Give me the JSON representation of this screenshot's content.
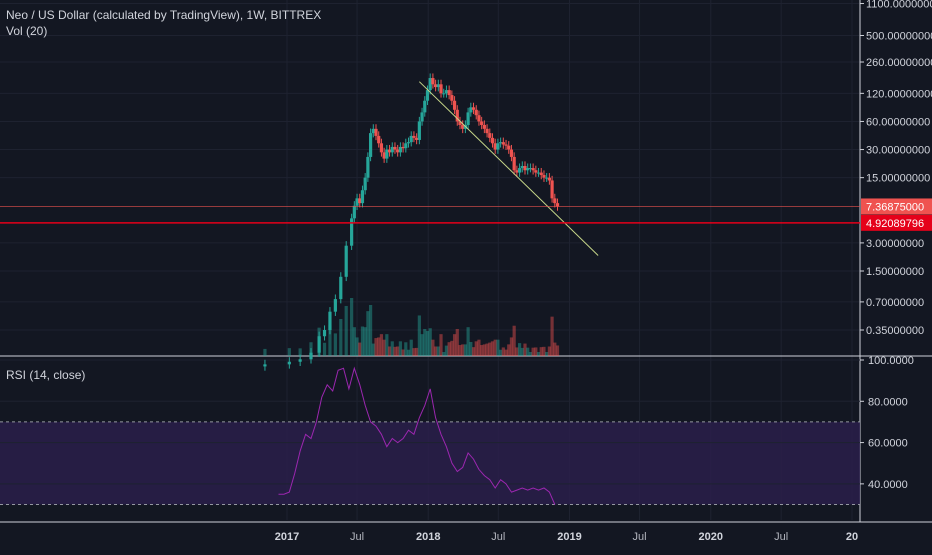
{
  "header": {
    "symbol_title": "Neo / US Dollar (calculated by TradingView), 1W, BITTREX",
    "volume_label": "Vol (20)",
    "rsi_label": "RSI (14, close)"
  },
  "colors": {
    "background": "#131722",
    "up": "#26a69a",
    "down": "#ef5350",
    "trendline": "#c8d88a",
    "support_line": "#e5001a",
    "rsi_line": "#9c27b0",
    "rsi_band": "#2a1f4a",
    "grid": "#1e2230"
  },
  "chart_data": [
    {
      "type": "candlestick",
      "scale": "log",
      "price_ticks": [
        "1100.00000000",
        "500.00000000",
        "260.00000000",
        "120.00000000",
        "60.00000000",
        "30.00000000",
        "15.00000000",
        "7.36875000",
        "4.92089796",
        "3.00000000",
        "1.50000000",
        "0.70000000",
        "0.35000000"
      ],
      "price_tick_values": [
        1100,
        500,
        260,
        120,
        60,
        30,
        15,
        7.36875,
        4.92089796,
        3,
        1.5,
        0.7,
        0.35
      ],
      "current_price_label": "7.36875000",
      "support_price_label": "4.92089796",
      "time_ticks": [
        {
          "label": "2017",
          "date": "2017-01-01",
          "bold": true
        },
        {
          "label": "Jul",
          "date": "2017-07-01",
          "bold": false
        },
        {
          "label": "2018",
          "date": "2018-01-01",
          "bold": true
        },
        {
          "label": "Jul",
          "date": "2018-07-01",
          "bold": false
        },
        {
          "label": "2019",
          "date": "2019-01-01",
          "bold": true
        },
        {
          "label": "Jul",
          "date": "2019-07-01",
          "bold": false
        },
        {
          "label": "2020",
          "date": "2020-01-01",
          "bold": true
        },
        {
          "label": "Jul",
          "date": "2020-07-01",
          "bold": false
        },
        {
          "label": "20",
          "date": "2020-12-31",
          "bold": true
        }
      ],
      "price_series": [
        {
          "date": "2016-11-05",
          "close": 0.15
        },
        {
          "date": "2017-01-07",
          "close": 0.16
        },
        {
          "date": "2017-02-04",
          "close": 0.17
        },
        {
          "date": "2017-03-04",
          "close": 0.2
        },
        {
          "date": "2017-03-25",
          "close": 0.3
        },
        {
          "date": "2017-04-08",
          "close": 0.35
        },
        {
          "date": "2017-04-22",
          "close": 0.55
        },
        {
          "date": "2017-05-06",
          "close": 0.75
        },
        {
          "date": "2017-05-20",
          "close": 1.3
        },
        {
          "date": "2017-06-03",
          "close": 2.8
        },
        {
          "date": "2017-06-17",
          "close": 5.5
        },
        {
          "date": "2017-06-24",
          "close": 7.5
        },
        {
          "date": "2017-07-01",
          "close": 9.0
        },
        {
          "date": "2017-07-08",
          "close": 8.0
        },
        {
          "date": "2017-07-15",
          "close": 11
        },
        {
          "date": "2017-07-22",
          "close": 15
        },
        {
          "date": "2017-07-29",
          "close": 25
        },
        {
          "date": "2017-08-05",
          "close": 45
        },
        {
          "date": "2017-08-12",
          "close": 50
        },
        {
          "date": "2017-08-19",
          "close": 42
        },
        {
          "date": "2017-08-26",
          "close": 35
        },
        {
          "date": "2017-09-02",
          "close": 28
        },
        {
          "date": "2017-09-09",
          "close": 24
        },
        {
          "date": "2017-09-16",
          "close": 30
        },
        {
          "date": "2017-09-23",
          "close": 28
        },
        {
          "date": "2017-09-30",
          "close": 32
        },
        {
          "date": "2017-10-07",
          "close": 30
        },
        {
          "date": "2017-10-14",
          "close": 28
        },
        {
          "date": "2017-10-21",
          "close": 32
        },
        {
          "date": "2017-10-28",
          "close": 31
        },
        {
          "date": "2017-11-04",
          "close": 35
        },
        {
          "date": "2017-11-11",
          "close": 36
        },
        {
          "date": "2017-11-18",
          "close": 42
        },
        {
          "date": "2017-11-25",
          "close": 40
        },
        {
          "date": "2017-12-02",
          "close": 38
        },
        {
          "date": "2017-12-09",
          "close": 60
        },
        {
          "date": "2017-12-16",
          "close": 75
        },
        {
          "date": "2017-12-23",
          "close": 100
        },
        {
          "date": "2017-12-30",
          "close": 130
        },
        {
          "date": "2018-01-06",
          "close": 175
        },
        {
          "date": "2018-01-13",
          "close": 150
        },
        {
          "date": "2018-01-20",
          "close": 140
        },
        {
          "date": "2018-01-27",
          "close": 150
        },
        {
          "date": "2018-02-03",
          "close": 120
        },
        {
          "date": "2018-02-10",
          "close": 120
        },
        {
          "date": "2018-02-17",
          "close": 130
        },
        {
          "date": "2018-02-24",
          "close": 115
        },
        {
          "date": "2018-03-03",
          "close": 100
        },
        {
          "date": "2018-03-10",
          "close": 80
        },
        {
          "date": "2018-03-17",
          "close": 60
        },
        {
          "date": "2018-03-24",
          "close": 55
        },
        {
          "date": "2018-03-31",
          "close": 50
        },
        {
          "date": "2018-04-07",
          "close": 55
        },
        {
          "date": "2018-04-14",
          "close": 75
        },
        {
          "date": "2018-04-21",
          "close": 85
        },
        {
          "date": "2018-04-28",
          "close": 80
        },
        {
          "date": "2018-05-05",
          "close": 70
        },
        {
          "date": "2018-05-12",
          "close": 60
        },
        {
          "date": "2018-05-19",
          "close": 55
        },
        {
          "date": "2018-05-26",
          "close": 50
        },
        {
          "date": "2018-06-02",
          "close": 45
        },
        {
          "date": "2018-06-09",
          "close": 40
        },
        {
          "date": "2018-06-16",
          "close": 35
        },
        {
          "date": "2018-06-23",
          "close": 30
        },
        {
          "date": "2018-06-30",
          "close": 35
        },
        {
          "date": "2018-07-07",
          "close": 36
        },
        {
          "date": "2018-07-14",
          "close": 34
        },
        {
          "date": "2018-07-21",
          "close": 33
        },
        {
          "date": "2018-07-28",
          "close": 30
        },
        {
          "date": "2018-08-04",
          "close": 25
        },
        {
          "date": "2018-08-11",
          "close": 18
        },
        {
          "date": "2018-08-18",
          "close": 17
        },
        {
          "date": "2018-08-25",
          "close": 19
        },
        {
          "date": "2018-09-01",
          "close": 20
        },
        {
          "date": "2018-09-08",
          "close": 18
        },
        {
          "date": "2018-09-15",
          "close": 19
        },
        {
          "date": "2018-09-22",
          "close": 19
        },
        {
          "date": "2018-09-29",
          "close": 18
        },
        {
          "date": "2018-10-06",
          "close": 17
        },
        {
          "date": "2018-10-13",
          "close": 17
        },
        {
          "date": "2018-10-20",
          "close": 16
        },
        {
          "date": "2018-10-27",
          "close": 15
        },
        {
          "date": "2018-11-03",
          "close": 15
        },
        {
          "date": "2018-11-10",
          "close": 14
        },
        {
          "date": "2018-11-17",
          "close": 9
        },
        {
          "date": "2018-11-24",
          "close": 8
        },
        {
          "date": "2018-12-01",
          "close": 7.37
        }
      ],
      "trendline": {
        "from": {
          "date": "2017-12-09",
          "price": 160
        },
        "to": {
          "date": "2019-03-16",
          "price": 2.2
        }
      },
      "support_level": 4.92089796,
      "current_level": 7.36875
    },
    {
      "type": "line",
      "title": "RSI (14, close)",
      "y_ticks": [
        "100.0000",
        "80.0000",
        "60.0000",
        "40.0000"
      ],
      "y_tick_values": [
        100,
        80,
        60,
        40
      ],
      "band_range": [
        30,
        70
      ],
      "ylim": [
        25,
        100
      ],
      "series": [
        {
          "date": "2016-12-10",
          "value": 35
        },
        {
          "date": "2016-12-24",
          "value": 35
        },
        {
          "date": "2017-01-07",
          "value": 36
        },
        {
          "date": "2017-01-21",
          "value": 45
        },
        {
          "date": "2017-02-04",
          "value": 56
        },
        {
          "date": "2017-02-18",
          "value": 64
        },
        {
          "date": "2017-03-04",
          "value": 62
        },
        {
          "date": "2017-03-18",
          "value": 70
        },
        {
          "date": "2017-04-01",
          "value": 82
        },
        {
          "date": "2017-04-15",
          "value": 88
        },
        {
          "date": "2017-04-29",
          "value": 85
        },
        {
          "date": "2017-05-13",
          "value": 95
        },
        {
          "date": "2017-05-27",
          "value": 96
        },
        {
          "date": "2017-06-10",
          "value": 86
        },
        {
          "date": "2017-06-24",
          "value": 96
        },
        {
          "date": "2017-07-08",
          "value": 88
        },
        {
          "date": "2017-07-22",
          "value": 78
        },
        {
          "date": "2017-08-05",
          "value": 70
        },
        {
          "date": "2017-08-19",
          "value": 68
        },
        {
          "date": "2017-09-02",
          "value": 64
        },
        {
          "date": "2017-09-16",
          "value": 58
        },
        {
          "date": "2017-09-30",
          "value": 62
        },
        {
          "date": "2017-10-14",
          "value": 60
        },
        {
          "date": "2017-10-28",
          "value": 62
        },
        {
          "date": "2017-11-11",
          "value": 66
        },
        {
          "date": "2017-11-25",
          "value": 64
        },
        {
          "date": "2017-12-09",
          "value": 72
        },
        {
          "date": "2017-12-23",
          "value": 78
        },
        {
          "date": "2018-01-06",
          "value": 86
        },
        {
          "date": "2018-01-20",
          "value": 72
        },
        {
          "date": "2018-02-03",
          "value": 64
        },
        {
          "date": "2018-02-17",
          "value": 58
        },
        {
          "date": "2018-03-03",
          "value": 50
        },
        {
          "date": "2018-03-17",
          "value": 46
        },
        {
          "date": "2018-03-31",
          "value": 48
        },
        {
          "date": "2018-04-14",
          "value": 55
        },
        {
          "date": "2018-04-28",
          "value": 52
        },
        {
          "date": "2018-05-12",
          "value": 47
        },
        {
          "date": "2018-05-26",
          "value": 44
        },
        {
          "date": "2018-06-09",
          "value": 42
        },
        {
          "date": "2018-06-23",
          "value": 38
        },
        {
          "date": "2018-07-07",
          "value": 42
        },
        {
          "date": "2018-07-21",
          "value": 40
        },
        {
          "date": "2018-08-04",
          "value": 36
        },
        {
          "date": "2018-08-18",
          "value": 37
        },
        {
          "date": "2018-09-01",
          "value": 38
        },
        {
          "date": "2018-09-15",
          "value": 37
        },
        {
          "date": "2018-09-29",
          "value": 38
        },
        {
          "date": "2018-10-13",
          "value": 37
        },
        {
          "date": "2018-10-27",
          "value": 38
        },
        {
          "date": "2018-11-10",
          "value": 36
        },
        {
          "date": "2018-11-24",
          "value": 30
        }
      ]
    }
  ]
}
